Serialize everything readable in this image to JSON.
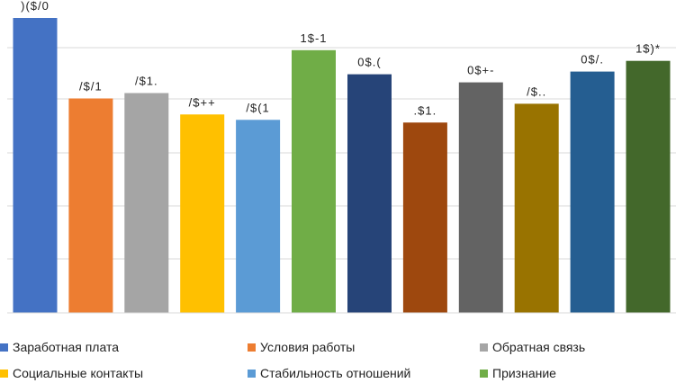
{
  "chart_data": {
    "type": "bar",
    "title": "",
    "xlabel": "",
    "ylabel": "",
    "ylim": [
      0,
      5.5
    ],
    "grid": true,
    "legend_position": "bottom",
    "categories": [
      "Заработная плата",
      "Условия работы",
      "Обратная связь",
      "Социальные контакты",
      "Стабильность отношений",
      "Признание",
      "",
      "",
      "",
      "",
      "",
      ""
    ],
    "values": [
      5.5,
      4.0,
      4.1,
      3.7,
      3.6,
      4.9,
      4.45,
      3.55,
      4.3,
      3.9,
      4.5,
      4.7
    ],
    "data_labels": [
      ")($/0",
      "/$/1",
      "/$1.",
      "/$++",
      "/$(1",
      "1$-1",
      "0$.(",
      ".$1.",
      "0$+-",
      "/$..",
      "0$/.",
      "1$)*"
    ],
    "colors": [
      "#4472C4",
      "#ED7D31",
      "#A5A5A5",
      "#FFC000",
      "#5B9BD5",
      "#70AD47",
      "#264478",
      "#9E480E",
      "#636363",
      "#997300",
      "#255E91",
      "#43682B"
    ],
    "legend": [
      {
        "label": "Заработная плата",
        "color": "#4472C4"
      },
      {
        "label": "Условия работы",
        "color": "#ED7D31"
      },
      {
        "label": "Обратная связь",
        "color": "#A5A5A5"
      },
      {
        "label": "Социальные контакты",
        "color": "#FFC000"
      },
      {
        "label": "Стабильность отношений",
        "color": "#5B9BD5"
      },
      {
        "label": "Признание",
        "color": "#70AD47"
      }
    ]
  }
}
